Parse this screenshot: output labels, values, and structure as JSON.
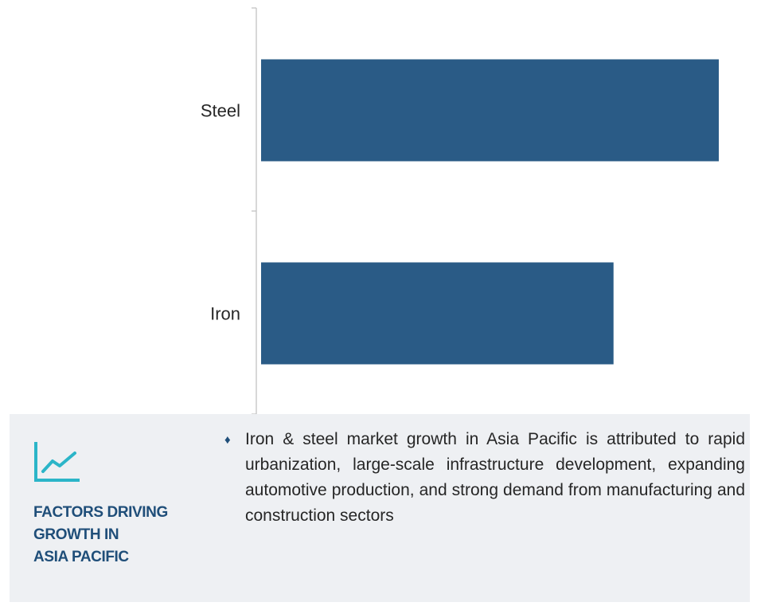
{
  "chart_data": {
    "type": "bar",
    "orientation": "horizontal",
    "categories": [
      "Steel",
      "Iron"
    ],
    "values": [
      100,
      77
    ],
    "bar_color": "#2a5b86",
    "xlim": [
      0,
      100
    ],
    "grid": false,
    "title": "",
    "xlabel": "",
    "ylabel": ""
  },
  "factors": {
    "title_lines": [
      "FACTORS DRIVING",
      "GROWTH IN",
      "ASIA PACIFIC"
    ],
    "bullet": "♦",
    "text": "Iron & steel market growth in Asia Pacific is attributed to rapid urbanization, large-scale infrastructure development, expanding automotive production, and strong demand from manufacturing and construction sectors",
    "icon": "trend-line-icon",
    "accent_color": "#2bb5c8",
    "title_color": "#1f4e79",
    "panel_color": "#eef0f3"
  }
}
